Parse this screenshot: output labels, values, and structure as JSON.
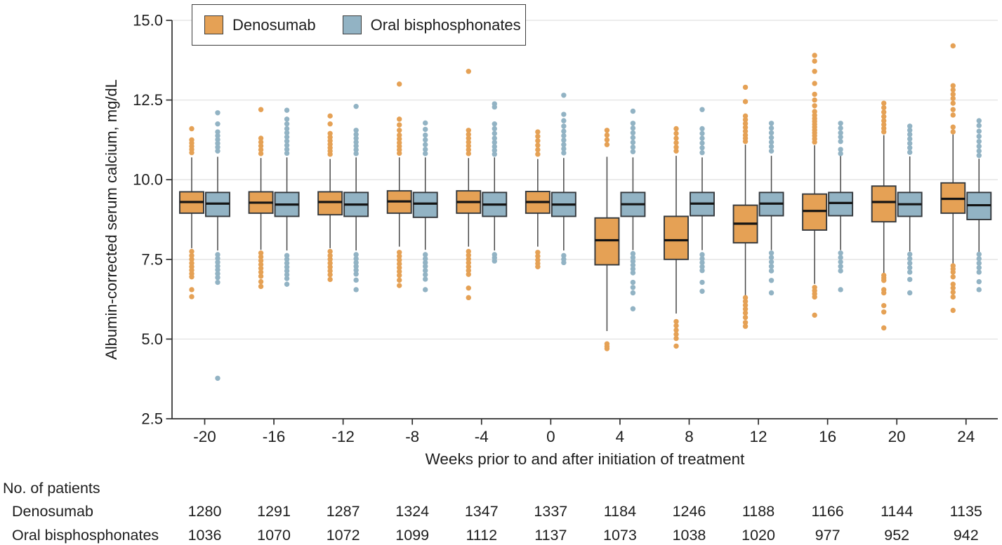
{
  "figure": {
    "y_axis_title": "Albumin-corrected serum calcium, mg/dL",
    "x_axis_title": "Weeks prior to and after initiation of treatment",
    "legend": [
      {
        "label": "Denosumab",
        "color": "#E5A155"
      },
      {
        "label": "Oral bisphosphonates",
        "color": "#92B3C4"
      }
    ],
    "colors": {
      "box_border": "#34383C",
      "median": "#141414",
      "whisker": "#474747",
      "axis": "#2e2e2e",
      "gridline": "#e2e2e2",
      "text": "#1d1d1d"
    }
  },
  "chart_data": {
    "type": "grouped-boxplot",
    "title": "",
    "xlabel": "Weeks prior to and after initiation of treatment",
    "ylabel": "Albumin-corrected serum calcium, mg/dL",
    "ylim": [
      2.5,
      15.0
    ],
    "yticks": [
      2.5,
      5.0,
      7.5,
      10.0,
      12.5,
      15.0
    ],
    "ytick_labels": [
      "2.5",
      "5.0",
      "7.5",
      "10.0",
      "12.5",
      "15.0"
    ],
    "grid": true,
    "legend_position": "top-left",
    "categories": [
      -20,
      -16,
      -12,
      -8,
      -4,
      0,
      4,
      8,
      12,
      16,
      20,
      24
    ],
    "series": [
      {
        "name": "Denosumab",
        "color": "#E5A155",
        "boxes": [
          {
            "low": 7.85,
            "q1": 8.95,
            "median": 9.3,
            "q3": 9.62,
            "high": 10.7,
            "out_hi": [
              11.6,
              11.25,
              11.15,
              11.05,
              10.95,
              10.85
            ],
            "out_lo": [
              7.75,
              7.62,
              7.5,
              7.38,
              7.27,
              7.16,
              7.05,
              6.95,
              6.55,
              6.33
            ]
          },
          {
            "low": 7.8,
            "q1": 8.95,
            "median": 9.28,
            "q3": 9.62,
            "high": 10.68,
            "out_hi": [
              12.2,
              11.3,
              11.18,
              11.06,
              10.94,
              10.82
            ],
            "out_lo": [
              7.7,
              7.58,
              7.46,
              7.34,
              7.22,
              7.1,
              6.97,
              6.8,
              6.65
            ]
          },
          {
            "low": 7.85,
            "q1": 8.9,
            "median": 9.3,
            "q3": 9.62,
            "high": 10.65,
            "out_hi": [
              12.0,
              11.75,
              11.45,
              11.33,
              11.22,
              11.11,
              11.0,
              10.9,
              10.8
            ],
            "out_lo": [
              7.75,
              7.62,
              7.5,
              7.38,
              7.26,
              7.14,
              7.02,
              6.87
            ]
          },
          {
            "low": 7.9,
            "q1": 8.95,
            "median": 9.32,
            "q3": 9.65,
            "high": 10.7,
            "out_hi": [
              13.0,
              11.9,
              11.72,
              11.55,
              11.4,
              11.28,
              11.16,
              11.05,
              10.94,
              10.83
            ],
            "out_lo": [
              7.72,
              7.6,
              7.48,
              7.36,
              7.24,
              7.12,
              7.0,
              6.85,
              6.68
            ]
          },
          {
            "low": 7.9,
            "q1": 8.95,
            "median": 9.3,
            "q3": 9.65,
            "high": 10.68,
            "out_hi": [
              13.4,
              11.55,
              11.42,
              11.3,
              11.18,
              11.06,
              10.94,
              10.82
            ],
            "out_lo": [
              7.75,
              7.63,
              7.51,
              7.39,
              7.27,
              7.15,
              7.03,
              6.6,
              6.3
            ]
          },
          {
            "low": 7.9,
            "q1": 8.95,
            "median": 9.3,
            "q3": 9.63,
            "high": 10.65,
            "out_hi": [
              11.5,
              11.36,
              11.22,
              11.08,
              10.94,
              10.8
            ],
            "out_lo": [
              7.72,
              7.6,
              7.48,
              7.37,
              7.27
            ]
          },
          {
            "low": 5.25,
            "q1": 7.33,
            "median": 8.1,
            "q3": 8.8,
            "high": 10.72,
            "out_hi": [
              11.55,
              11.4,
              11.25,
              11.1
            ],
            "out_lo": [
              4.85,
              4.77,
              4.7
            ]
          },
          {
            "low": 5.8,
            "q1": 7.5,
            "median": 8.1,
            "q3": 8.85,
            "high": 10.75,
            "out_hi": [
              11.6,
              11.45,
              11.3,
              11.16,
              11.02,
              10.9
            ],
            "out_lo": [
              5.55,
              5.42,
              5.28,
              5.15,
              5.02,
              4.78
            ]
          },
          {
            "low": 6.35,
            "q1": 8.02,
            "median": 8.62,
            "q3": 9.2,
            "high": 11.1,
            "out_hi": [
              12.9,
              12.45,
              12.0,
              11.88,
              11.76,
              11.64,
              11.52,
              11.4,
              11.3,
              11.2
            ],
            "out_lo": [
              6.3,
              6.18,
              6.06,
              5.94,
              5.82,
              5.68,
              5.52,
              5.4
            ]
          },
          {
            "low": 6.73,
            "q1": 8.42,
            "median": 9.02,
            "q3": 9.55,
            "high": 11.08,
            "out_hi": [
              13.9,
              13.72,
              13.4,
              13.02,
              12.68,
              12.5,
              12.32,
              12.14,
              12.02,
              11.92,
              11.83,
              11.74,
              11.65,
              11.56,
              11.47,
              11.38,
              11.28,
              11.18
            ],
            "out_lo": [
              6.62,
              6.52,
              6.42,
              6.32,
              5.75
            ]
          },
          {
            "low": 7.05,
            "q1": 8.68,
            "median": 9.3,
            "q3": 9.8,
            "high": 11.4,
            "out_hi": [
              12.4,
              12.26,
              12.12,
              11.98,
              11.85,
              11.73,
              11.61,
              11.5
            ],
            "out_lo": [
              7.0,
              6.92,
              6.84,
              6.55,
              6.45,
              6.05,
              5.85,
              5.35
            ]
          },
          {
            "low": 7.37,
            "q1": 8.95,
            "median": 9.4,
            "q3": 9.9,
            "high": 11.42,
            "out_hi": [
              14.2,
              12.95,
              12.82,
              12.68,
              12.55,
              12.4,
              12.2,
              12.03,
              11.65,
              11.5
            ],
            "out_lo": [
              7.3,
              7.2,
              7.1,
              6.95,
              6.72,
              6.6,
              6.47,
              6.32,
              5.9
            ]
          }
        ]
      },
      {
        "name": "Oral bisphosphonates",
        "color": "#92B3C4",
        "boxes": [
          {
            "low": 7.78,
            "q1": 8.85,
            "median": 9.25,
            "q3": 9.6,
            "high": 10.72,
            "out_hi": [
              12.1,
              11.75,
              11.5,
              11.38,
              11.26,
              11.14,
              11.02,
              10.9
            ],
            "out_lo": [
              7.65,
              7.53,
              7.41,
              7.29,
              7.17,
              7.05,
              6.93,
              6.78,
              3.77
            ]
          },
          {
            "low": 7.78,
            "q1": 8.85,
            "median": 9.22,
            "q3": 9.6,
            "high": 10.7,
            "out_hi": [
              12.18,
              11.9,
              11.75,
              11.6,
              11.47,
              11.34,
              11.21,
              11.08,
              10.95,
              10.83
            ],
            "out_lo": [
              7.62,
              7.5,
              7.38,
              7.26,
              7.14,
              7.02,
              6.9,
              6.72
            ]
          },
          {
            "low": 7.78,
            "q1": 8.85,
            "median": 9.22,
            "q3": 9.6,
            "high": 10.7,
            "out_hi": [
              12.3,
              11.55,
              11.42,
              11.3,
              11.18,
              11.06,
              10.94,
              10.82
            ],
            "out_lo": [
              7.65,
              7.52,
              7.4,
              7.28,
              7.16,
              7.04,
              6.85,
              6.55
            ]
          },
          {
            "low": 7.8,
            "q1": 8.82,
            "median": 9.25,
            "q3": 9.6,
            "high": 10.7,
            "out_hi": [
              11.78,
              11.58,
              11.4,
              11.25,
              11.1,
              10.95,
              10.82
            ],
            "out_lo": [
              7.65,
              7.52,
              7.4,
              7.28,
              7.15,
              7.02,
              6.88,
              6.55
            ]
          },
          {
            "low": 7.78,
            "q1": 8.85,
            "median": 9.22,
            "q3": 9.6,
            "high": 10.7,
            "out_hi": [
              12.38,
              12.28,
              11.75,
              11.6,
              11.45,
              11.3,
              11.17,
              11.04,
              10.92,
              10.8
            ],
            "out_lo": [
              7.65,
              7.55,
              7.45
            ]
          },
          {
            "low": 7.78,
            "q1": 8.85,
            "median": 9.22,
            "q3": 9.6,
            "high": 10.68,
            "out_hi": [
              12.65,
              12.05,
              11.85,
              11.68,
              11.52,
              11.38,
              11.24,
              11.1,
              10.97,
              10.84
            ],
            "out_lo": [
              7.62,
              7.5,
              7.4
            ]
          },
          {
            "low": 7.79,
            "q1": 8.85,
            "median": 9.23,
            "q3": 9.6,
            "high": 10.7,
            "out_hi": [
              12.15,
              11.77,
              11.62,
              11.47,
              11.32,
              11.17,
              11.02,
              10.88
            ],
            "out_lo": [
              7.68,
              7.56,
              7.44,
              7.32,
              7.2,
              7.08,
              6.78,
              6.62,
              6.45,
              5.95
            ]
          },
          {
            "low": 7.79,
            "q1": 8.87,
            "median": 9.25,
            "q3": 9.6,
            "high": 10.7,
            "out_hi": [
              12.2,
              11.6,
              11.45,
              11.3,
              11.15,
              11.0,
              10.85
            ],
            "out_lo": [
              7.65,
              7.52,
              7.4,
              7.27,
              7.15,
              6.78,
              6.5
            ]
          },
          {
            "low": 7.79,
            "q1": 8.87,
            "median": 9.25,
            "q3": 9.6,
            "high": 10.75,
            "out_hi": [
              11.77,
              11.62,
              11.47,
              11.32,
              11.18,
              11.04,
              10.9
            ],
            "out_lo": [
              7.7,
              7.56,
              7.42,
              7.28,
              7.14,
              6.84,
              6.45
            ]
          },
          {
            "low": 7.79,
            "q1": 8.87,
            "median": 9.27,
            "q3": 9.6,
            "high": 10.75,
            "out_hi": [
              11.77,
              11.62,
              11.47,
              11.34,
              11.2,
              10.95,
              10.82
            ],
            "out_lo": [
              7.7,
              7.56,
              7.42,
              7.28,
              7.14,
              6.55
            ]
          },
          {
            "low": 7.75,
            "q1": 8.85,
            "median": 9.23,
            "q3": 9.6,
            "high": 10.73,
            "out_hi": [
              11.68,
              11.55,
              11.42,
              11.28,
              11.14,
              11.0,
              10.86
            ],
            "out_lo": [
              7.66,
              7.52,
              7.38,
              7.24,
              7.1,
              6.87,
              6.45
            ]
          },
          {
            "low": 7.73,
            "q1": 8.75,
            "median": 9.2,
            "q3": 9.6,
            "high": 10.66,
            "out_hi": [
              11.85,
              11.7,
              11.52,
              11.36,
              11.2,
              11.05,
              10.9,
              10.76
            ],
            "out_lo": [
              7.66,
              7.52,
              7.38,
              7.24,
              7.1,
              6.8,
              6.55
            ]
          }
        ]
      }
    ]
  },
  "patients_table": {
    "title": "No. of patients",
    "rows": [
      {
        "label": "Denosumab",
        "values": [
          1280,
          1291,
          1287,
          1324,
          1347,
          1337,
          1184,
          1246,
          1188,
          1166,
          1144,
          1135
        ]
      },
      {
        "label": "Oral bisphosphonates",
        "values": [
          1036,
          1070,
          1072,
          1099,
          1112,
          1137,
          1073,
          1038,
          1020,
          977,
          952,
          942
        ]
      }
    ]
  }
}
